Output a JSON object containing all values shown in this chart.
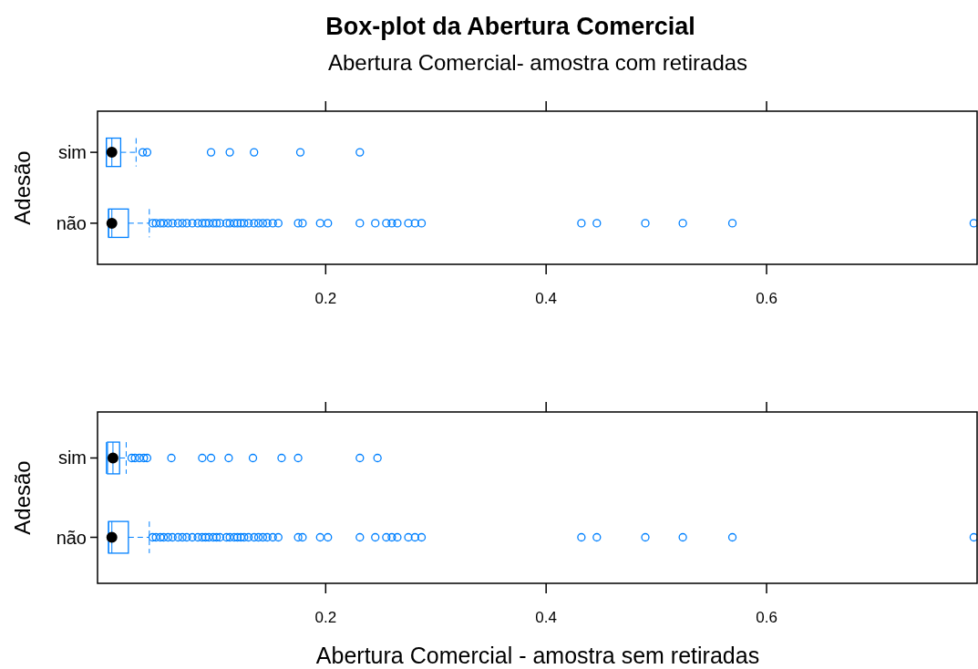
{
  "chart_data": [
    {
      "type": "box",
      "title": "Box-plot da Abertura Comercial",
      "series": [
        {
          "type": "scatter",
          "color": "#000000",
          "marker": "circle",
          "x": [
            "sim",
            "não"
          ],
          "values": [
            0.006,
            0.006
          ]
        }
      ],
      "subtitle": "Abertura Comercial- amostra com retiradas",
      "ylabel": "Adesão",
      "orientation": "horizontal",
      "categories": [
        "sim",
        "não"
      ],
      "color": "#0080ff",
      "xlim": [
        -0.007,
        0.791
      ],
      "xticks": [
        0.2,
        0.4,
        0.6
      ],
      "boxes": [
        {
          "low": 0.001,
          "q1": 0.001,
          "median": 0.006,
          "q3": 0.014,
          "high": 0.028,
          "outliers": [
            0.034,
            0.038,
            0.096,
            0.113,
            0.135,
            0.177,
            0.231
          ]
        },
        {
          "low": 0.003,
          "q1": 0.003,
          "median": 0.006,
          "q3": 0.021,
          "high": 0.04,
          "outliers": [
            0.043,
            0.046,
            0.05,
            0.053,
            0.057,
            0.061,
            0.066,
            0.07,
            0.074,
            0.079,
            0.084,
            0.088,
            0.091,
            0.094,
            0.098,
            0.101,
            0.104,
            0.11,
            0.113,
            0.117,
            0.12,
            0.123,
            0.126,
            0.13,
            0.135,
            0.139,
            0.143,
            0.147,
            0.152,
            0.157,
            0.175,
            0.179,
            0.195,
            0.202,
            0.231,
            0.245,
            0.255,
            0.26,
            0.265,
            0.275,
            0.281,
            0.287,
            0.432,
            0.446,
            0.49,
            0.524,
            0.569,
            0.788
          ]
        }
      ]
    },
    {
      "type": "box",
      "series": [
        {
          "type": "scatter",
          "color": "#000000",
          "marker": "circle",
          "x": [
            "sim",
            "não"
          ],
          "values": [
            0.007,
            0.006
          ]
        }
      ],
      "xlabel": "Abertura Comercial - amostra sem retiradas",
      "ylabel": "Adesão",
      "orientation": "horizontal",
      "categories": [
        "sim",
        "não"
      ],
      "color": "#0080ff",
      "xlim": [
        -0.007,
        0.791
      ],
      "xticks": [
        0.2,
        0.4,
        0.6
      ],
      "boxes": [
        {
          "low": 0.001,
          "q1": 0.002,
          "median": 0.007,
          "q3": 0.013,
          "high": 0.019,
          "outliers": [
            0.024,
            0.027,
            0.031,
            0.035,
            0.038,
            0.06,
            0.088,
            0.096,
            0.112,
            0.134,
            0.16,
            0.175,
            0.231,
            0.247
          ]
        },
        {
          "low": 0.003,
          "q1": 0.003,
          "median": 0.006,
          "q3": 0.021,
          "high": 0.04,
          "outliers": [
            0.043,
            0.046,
            0.05,
            0.053,
            0.057,
            0.061,
            0.066,
            0.07,
            0.074,
            0.079,
            0.084,
            0.088,
            0.091,
            0.094,
            0.098,
            0.101,
            0.104,
            0.11,
            0.113,
            0.117,
            0.12,
            0.123,
            0.126,
            0.13,
            0.135,
            0.139,
            0.143,
            0.147,
            0.152,
            0.157,
            0.175,
            0.179,
            0.195,
            0.202,
            0.231,
            0.245,
            0.255,
            0.26,
            0.265,
            0.275,
            0.281,
            0.287,
            0.432,
            0.446,
            0.49,
            0.524,
            0.569,
            0.788
          ]
        }
      ]
    }
  ]
}
